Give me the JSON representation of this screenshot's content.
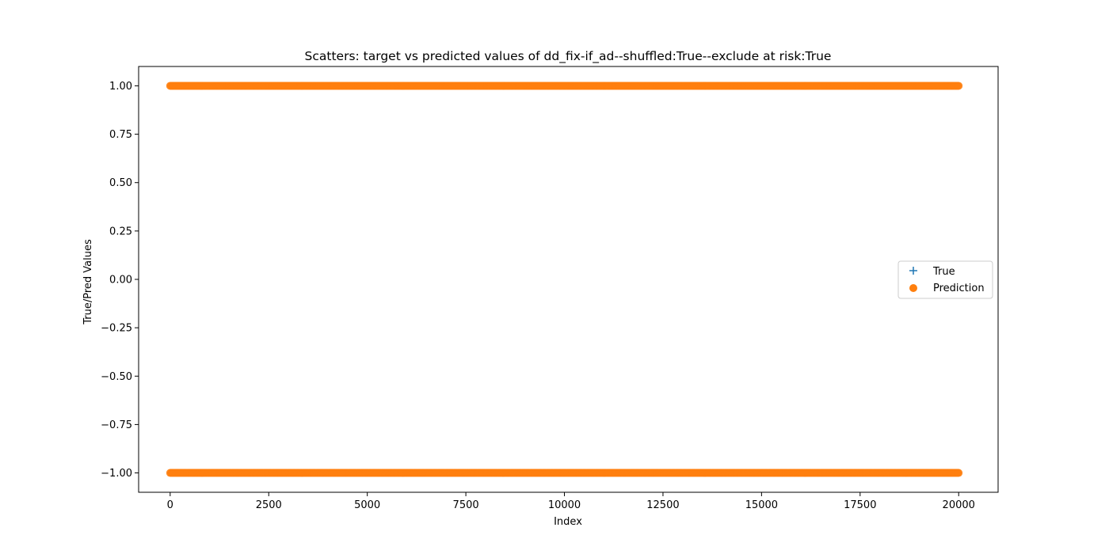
{
  "chart_data": {
    "type": "scatter",
    "title": "Scatters: target vs predicted values of dd_fix-if_ad--shuffled:True--exclude at risk:True",
    "xlabel": "Index",
    "ylabel": "True/Pred Values",
    "xlim": [
      -800,
      21000
    ],
    "ylim": [
      -1.1,
      1.1
    ],
    "xticks": [
      0,
      2500,
      5000,
      7500,
      10000,
      12500,
      15000,
      17500,
      20000
    ],
    "xtick_labels": [
      "0",
      "2500",
      "5000",
      "7500",
      "10000",
      "12500",
      "15000",
      "17500",
      "20000"
    ],
    "yticks": [
      1.0,
      0.75,
      0.5,
      0.25,
      0.0,
      -0.25,
      -0.5,
      -0.75,
      -1.0
    ],
    "ytick_labels": [
      "1.00",
      "0.75",
      "0.50",
      "0.25",
      "0.00",
      "−0.25",
      "−0.50",
      "−0.75",
      "−1.00"
    ],
    "grid": false,
    "legend_position": "center-right",
    "n_points": 20000,
    "series": [
      {
        "name": "True",
        "marker": "plus",
        "color": "#1f77b4",
        "x_range": [
          0,
          20000
        ],
        "levels": [
          1.0,
          -1.0
        ]
      },
      {
        "name": "Prediction",
        "marker": "circle",
        "color": "#ff7f0e",
        "x_range": [
          0,
          20000
        ],
        "levels": [
          1.0,
          -1.0
        ]
      }
    ]
  }
}
